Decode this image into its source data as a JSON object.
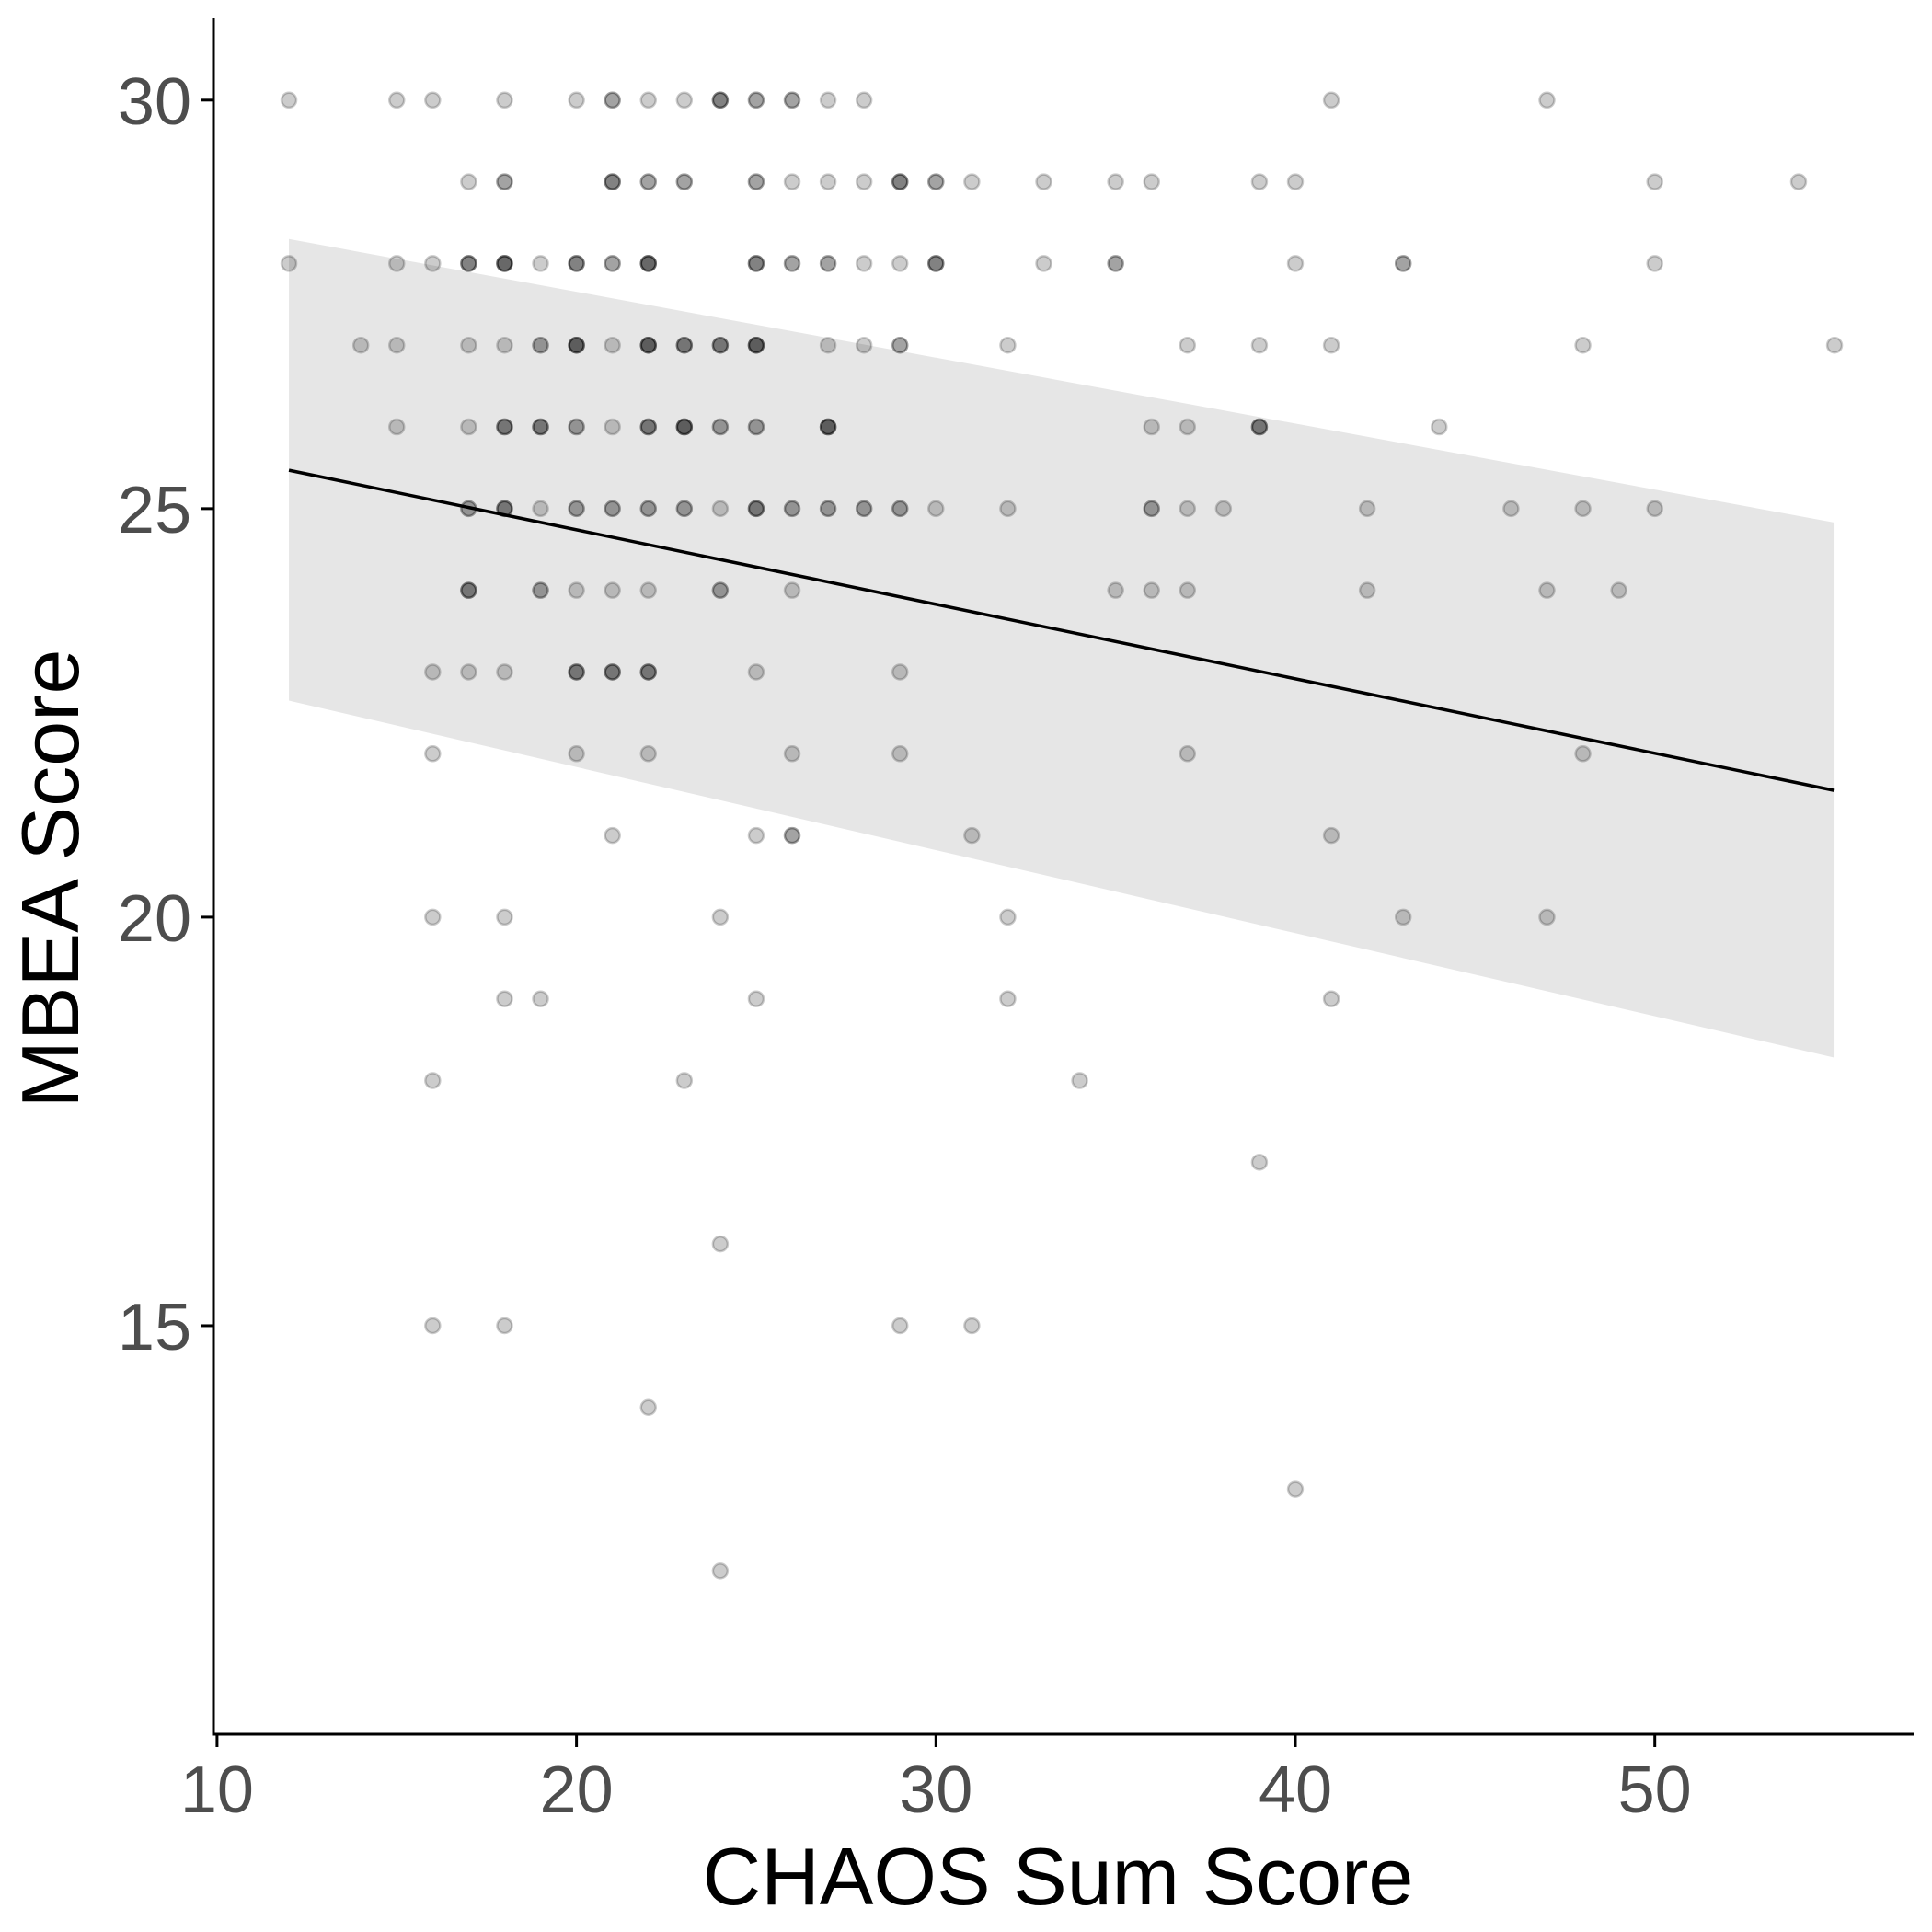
{
  "chart_data": {
    "type": "scatter",
    "title": "",
    "xlabel": "CHAOS Sum Score",
    "ylabel": "MBEA Score",
    "xlim": [
      9.9,
      57.2
    ],
    "ylim": [
      10.0,
      31.0
    ],
    "xticks": [
      10,
      20,
      30,
      40,
      50
    ],
    "yticks": [
      15,
      20,
      25,
      30
    ],
    "grid": false,
    "legend": "none",
    "colors": {
      "point": "#000000",
      "line": "#000000",
      "band": "#e6e6e6",
      "axis": "#000000",
      "tick_label": "#4d4d4d"
    },
    "point_alpha": 0.2,
    "regression": {
      "x_range": [
        12,
        55
      ],
      "fit": [
        25.47,
        21.55
      ],
      "lower": [
        22.65,
        18.28
      ],
      "upper": [
        28.3,
        24.83
      ]
    },
    "points": [
      [
        12,
        30
      ],
      [
        15,
        30
      ],
      [
        16,
        30
      ],
      [
        18,
        30
      ],
      [
        20,
        30
      ],
      [
        21,
        30
      ],
      [
        21,
        30
      ],
      [
        22,
        30
      ],
      [
        23,
        30
      ],
      [
        24,
        30
      ],
      [
        24,
        30
      ],
      [
        24,
        30
      ],
      [
        25,
        30
      ],
      [
        25,
        30
      ],
      [
        26,
        30
      ],
      [
        26,
        30
      ],
      [
        27,
        30
      ],
      [
        28,
        30
      ],
      [
        41,
        30
      ],
      [
        47,
        30
      ],
      [
        17,
        29
      ],
      [
        18,
        29
      ],
      [
        18,
        29
      ],
      [
        21,
        29
      ],
      [
        21,
        29
      ],
      [
        21,
        29
      ],
      [
        22,
        29
      ],
      [
        22,
        29
      ],
      [
        23,
        29
      ],
      [
        23,
        29
      ],
      [
        25,
        29
      ],
      [
        25,
        29
      ],
      [
        26,
        29
      ],
      [
        27,
        29
      ],
      [
        28,
        29
      ],
      [
        29,
        29
      ],
      [
        29,
        29
      ],
      [
        29,
        29
      ],
      [
        30,
        29
      ],
      [
        30,
        29
      ],
      [
        31,
        29
      ],
      [
        33,
        29
      ],
      [
        35,
        29
      ],
      [
        36,
        29
      ],
      [
        39,
        29
      ],
      [
        40,
        29
      ],
      [
        50,
        29
      ],
      [
        54,
        29
      ],
      [
        12,
        28
      ],
      [
        15,
        28
      ],
      [
        16,
        28
      ],
      [
        17,
        28
      ],
      [
        17,
        28
      ],
      [
        17,
        28
      ],
      [
        18,
        28
      ],
      [
        18,
        28
      ],
      [
        18,
        28
      ],
      [
        18,
        28
      ],
      [
        19,
        28
      ],
      [
        20,
        28
      ],
      [
        20,
        28
      ],
      [
        20,
        28
      ],
      [
        21,
        28
      ],
      [
        21,
        28
      ],
      [
        22,
        28
      ],
      [
        22,
        28
      ],
      [
        22,
        28
      ],
      [
        22,
        28
      ],
      [
        25,
        28
      ],
      [
        25,
        28
      ],
      [
        25,
        28
      ],
      [
        26,
        28
      ],
      [
        26,
        28
      ],
      [
        27,
        28
      ],
      [
        27,
        28
      ],
      [
        28,
        28
      ],
      [
        29,
        28
      ],
      [
        30,
        28
      ],
      [
        30,
        28
      ],
      [
        30,
        28
      ],
      [
        33,
        28
      ],
      [
        35,
        28
      ],
      [
        35,
        28
      ],
      [
        40,
        28
      ],
      [
        43,
        28
      ],
      [
        43,
        28
      ],
      [
        50,
        28
      ],
      [
        14,
        27
      ],
      [
        15,
        27
      ],
      [
        17,
        27
      ],
      [
        18,
        27
      ],
      [
        19,
        27
      ],
      [
        19,
        27
      ],
      [
        20,
        27
      ],
      [
        20,
        27
      ],
      [
        20,
        27
      ],
      [
        20,
        27
      ],
      [
        21,
        27
      ],
      [
        22,
        27
      ],
      [
        22,
        27
      ],
      [
        22,
        27
      ],
      [
        22,
        27
      ],
      [
        23,
        27
      ],
      [
        23,
        27
      ],
      [
        23,
        27
      ],
      [
        24,
        27
      ],
      [
        24,
        27
      ],
      [
        24,
        27
      ],
      [
        25,
        27
      ],
      [
        25,
        27
      ],
      [
        25,
        27
      ],
      [
        25,
        27
      ],
      [
        27,
        27
      ],
      [
        28,
        27
      ],
      [
        29,
        27
      ],
      [
        29,
        27
      ],
      [
        32,
        27
      ],
      [
        37,
        27
      ],
      [
        39,
        27
      ],
      [
        41,
        27
      ],
      [
        48,
        27
      ],
      [
        55,
        27
      ],
      [
        15,
        26
      ],
      [
        17,
        26
      ],
      [
        18,
        26
      ],
      [
        18,
        26
      ],
      [
        18,
        26
      ],
      [
        19,
        26
      ],
      [
        19,
        26
      ],
      [
        19,
        26
      ],
      [
        20,
        26
      ],
      [
        20,
        26
      ],
      [
        21,
        26
      ],
      [
        22,
        26
      ],
      [
        22,
        26
      ],
      [
        22,
        26
      ],
      [
        23,
        26
      ],
      [
        23,
        26
      ],
      [
        23,
        26
      ],
      [
        23,
        26
      ],
      [
        24,
        26
      ],
      [
        24,
        26
      ],
      [
        25,
        26
      ],
      [
        25,
        26
      ],
      [
        27,
        26
      ],
      [
        27,
        26
      ],
      [
        27,
        26
      ],
      [
        27,
        26
      ],
      [
        36,
        26
      ],
      [
        37,
        26
      ],
      [
        39,
        26
      ],
      [
        39,
        26
      ],
      [
        39,
        26
      ],
      [
        44,
        26
      ],
      [
        17,
        25
      ],
      [
        17,
        25
      ],
      [
        18,
        25
      ],
      [
        18,
        25
      ],
      [
        18,
        25
      ],
      [
        19,
        25
      ],
      [
        20,
        25
      ],
      [
        20,
        25
      ],
      [
        21,
        25
      ],
      [
        21,
        25
      ],
      [
        22,
        25
      ],
      [
        22,
        25
      ],
      [
        23,
        25
      ],
      [
        23,
        25
      ],
      [
        24,
        25
      ],
      [
        25,
        25
      ],
      [
        25,
        25
      ],
      [
        25,
        25
      ],
      [
        26,
        25
      ],
      [
        26,
        25
      ],
      [
        27,
        25
      ],
      [
        27,
        25
      ],
      [
        28,
        25
      ],
      [
        28,
        25
      ],
      [
        29,
        25
      ],
      [
        29,
        25
      ],
      [
        30,
        25
      ],
      [
        32,
        25
      ],
      [
        36,
        25
      ],
      [
        36,
        25
      ],
      [
        37,
        25
      ],
      [
        38,
        25
      ],
      [
        42,
        25
      ],
      [
        46,
        25
      ],
      [
        48,
        25
      ],
      [
        50,
        25
      ],
      [
        17,
        24
      ],
      [
        17,
        24
      ],
      [
        17,
        24
      ],
      [
        19,
        24
      ],
      [
        19,
        24
      ],
      [
        20,
        24
      ],
      [
        21,
        24
      ],
      [
        22,
        24
      ],
      [
        24,
        24
      ],
      [
        24,
        24
      ],
      [
        26,
        24
      ],
      [
        35,
        24
      ],
      [
        36,
        24
      ],
      [
        37,
        24
      ],
      [
        42,
        24
      ],
      [
        47,
        24
      ],
      [
        49,
        24
      ],
      [
        16,
        23
      ],
      [
        17,
        23
      ],
      [
        18,
        23
      ],
      [
        20,
        23
      ],
      [
        20,
        23
      ],
      [
        20,
        23
      ],
      [
        21,
        23
      ],
      [
        21,
        23
      ],
      [
        21,
        23
      ],
      [
        22,
        23
      ],
      [
        22,
        23
      ],
      [
        22,
        23
      ],
      [
        25,
        23
      ],
      [
        29,
        23
      ],
      [
        16,
        22
      ],
      [
        20,
        22
      ],
      [
        22,
        22
      ],
      [
        26,
        22
      ],
      [
        29,
        22
      ],
      [
        37,
        22
      ],
      [
        48,
        22
      ],
      [
        21,
        21
      ],
      [
        25,
        21
      ],
      [
        26,
        21
      ],
      [
        26,
        21
      ],
      [
        31,
        21
      ],
      [
        41,
        21
      ],
      [
        16,
        20
      ],
      [
        18,
        20
      ],
      [
        24,
        20
      ],
      [
        32,
        20
      ],
      [
        43,
        20
      ],
      [
        47,
        20
      ],
      [
        18,
        19
      ],
      [
        19,
        19
      ],
      [
        25,
        19
      ],
      [
        32,
        19
      ],
      [
        41,
        19
      ],
      [
        16,
        18
      ],
      [
        23,
        18
      ],
      [
        34,
        18
      ],
      [
        39,
        17
      ],
      [
        24,
        16
      ],
      [
        16,
        15
      ],
      [
        18,
        15
      ],
      [
        29,
        15
      ],
      [
        31,
        15
      ],
      [
        22,
        14
      ],
      [
        40,
        13
      ],
      [
        24,
        12
      ]
    ]
  }
}
